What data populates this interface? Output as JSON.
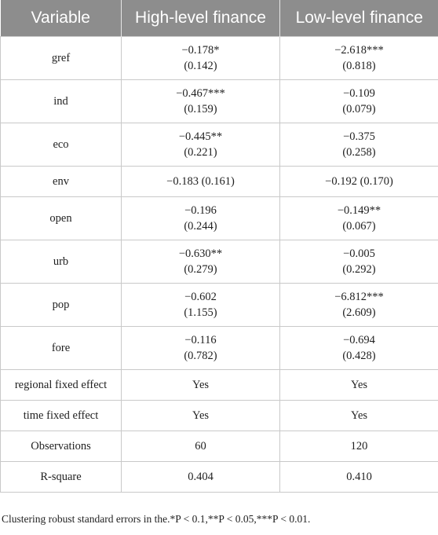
{
  "table": {
    "headers": [
      "Variable",
      "High-level finance",
      "Low-level finance"
    ],
    "rows": [
      {
        "variable": "gref",
        "high": "−0.178*",
        "high_se": "(0.142)",
        "low": "−2.618***",
        "low_se": "(0.818)"
      },
      {
        "variable": "ind",
        "high": "−0.467***",
        "high_se": "(0.159)",
        "low": "−0.109",
        "low_se": "(0.079)"
      },
      {
        "variable": "eco",
        "high": "−0.445**",
        "high_se": "(0.221)",
        "low": "−0.375",
        "low_se": "(0.258)"
      },
      {
        "variable": "env",
        "high": "−0.183 (0.161)",
        "low": "−0.192 (0.170)"
      },
      {
        "variable": "open",
        "high": "−0.196",
        "high_se": "(0.244)",
        "low": "−0.149**",
        "low_se": "(0.067)"
      },
      {
        "variable": "urb",
        "high": "−0.630**",
        "high_se": "(0.279)",
        "low": "−0.005",
        "low_se": "(0.292)"
      },
      {
        "variable": "pop",
        "high": "−0.602",
        "high_se": "(1.155)",
        "low": "−6.812***",
        "low_se": "(2.609)"
      },
      {
        "variable": "fore",
        "high": "−0.116",
        "high_se": "(0.782)",
        "low": "−0.694",
        "low_se": "(0.428)"
      },
      {
        "variable": "regional fixed effect",
        "high": "Yes",
        "low": "Yes"
      },
      {
        "variable": "time fixed effect",
        "high": "Yes",
        "low": "Yes"
      },
      {
        "variable": "Observations",
        "high": "60",
        "low": "120"
      },
      {
        "variable": "R-square",
        "high": "0.404",
        "low": "0.410"
      }
    ]
  },
  "note": "Clustering robust standard errors in the.*P < 0.1,**P < 0.05,***P < 0.01."
}
